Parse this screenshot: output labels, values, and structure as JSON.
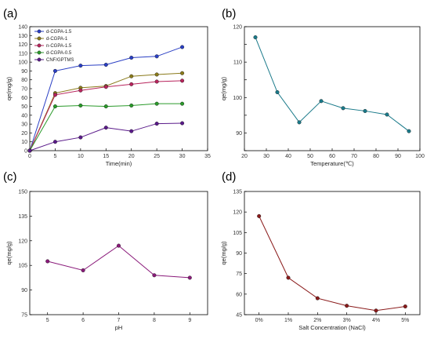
{
  "chart_data": [
    {
      "panel": "(a)",
      "type": "line",
      "xlabel": "Time(min)",
      "ylabel": "qe(mg/g)",
      "xlim": [
        0,
        35
      ],
      "ylim": [
        0,
        140
      ],
      "xticks": [
        0,
        5,
        10,
        15,
        20,
        25,
        30,
        35
      ],
      "yticks": [
        0,
        10,
        20,
        30,
        40,
        50,
        60,
        70,
        80,
        90,
        100,
        110,
        120,
        130,
        140
      ],
      "grid": false,
      "legend": "top-left",
      "x": [
        0,
        5,
        10,
        15,
        20,
        25,
        30
      ],
      "series": [
        {
          "name": "d-CGPA-1.5",
          "color": "#2a3fc4",
          "values": [
            0,
            90,
            96,
            97,
            105,
            106.5,
            117
          ]
        },
        {
          "name": "d-CGPA-1",
          "color": "#8a7a1a",
          "values": [
            0,
            65,
            71,
            73,
            84,
            86,
            87.5
          ]
        },
        {
          "name": "n-CGPA-1.5",
          "color": "#b8245c",
          "values": [
            0,
            63,
            68,
            72,
            75,
            78,
            79
          ]
        },
        {
          "name": "d-CGPA-0.5",
          "color": "#2a9a2a",
          "values": [
            0,
            50,
            51,
            50,
            51,
            53,
            53
          ]
        },
        {
          "name": "CNF/GPTMS",
          "color": "#5a1a8a",
          "values": [
            0,
            10,
            15,
            26,
            22,
            30.5,
            31
          ]
        }
      ]
    },
    {
      "panel": "(b)",
      "type": "line",
      "xlabel": "Temperature(℃)",
      "ylabel": "qe(mg/g)",
      "xlim": [
        20,
        100
      ],
      "ylim": [
        85,
        120
      ],
      "xticks": [
        20,
        30,
        40,
        50,
        60,
        70,
        80,
        90,
        100
      ],
      "yticks": [
        85,
        90,
        95,
        100,
        105,
        110,
        115,
        120
      ],
      "ytick_labels": [
        "",
        "90",
        "",
        "100",
        "",
        "110",
        "",
        "120"
      ],
      "grid": false,
      "color": "#1a7a8a",
      "x": [
        25,
        35,
        45,
        55,
        65,
        75,
        85,
        95
      ],
      "values": [
        117,
        101.5,
        93,
        99,
        97,
        96.2,
        95.2,
        90.5
      ]
    },
    {
      "panel": "(c)",
      "type": "line",
      "xlabel": "pH",
      "ylabel": "qe(mg/g)",
      "xlim": [
        4.5,
        9.5
      ],
      "ylim": [
        75,
        150
      ],
      "xticks": [
        5,
        6,
        7,
        8,
        9
      ],
      "yticks": [
        75,
        90,
        105,
        120,
        135,
        150
      ],
      "grid": false,
      "color": "#8a1a7a",
      "x": [
        5,
        6,
        7,
        8,
        9
      ],
      "values": [
        107.5,
        102,
        117,
        99,
        97.5
      ]
    },
    {
      "panel": "(d)",
      "type": "line",
      "xlabel": "Salt Concentration (NaCl)",
      "ylabel": "qe(mg/g)",
      "xlim": [
        -0.5,
        5.5
      ],
      "ylim": [
        45,
        135
      ],
      "categories": [
        "0%",
        "1%",
        "2%",
        "3%",
        "4%",
        "5%"
      ],
      "yticks": [
        45,
        60,
        75,
        90,
        105,
        120,
        135
      ],
      "grid": false,
      "color": "#8a1a1a",
      "values": [
        117,
        72,
        57,
        51.5,
        48,
        51
      ]
    }
  ]
}
